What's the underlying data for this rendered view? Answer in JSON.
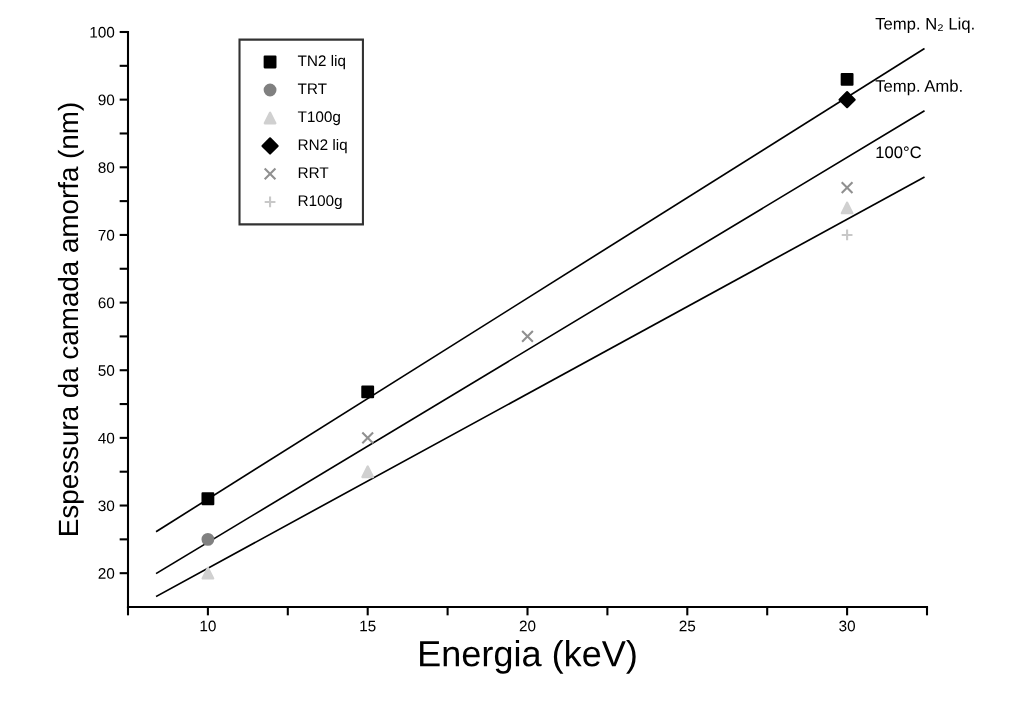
{
  "chart_data": {
    "type": "scatter",
    "xlabel": "Energia (keV)",
    "ylabel": "Espessura da camada amorfa (nm)",
    "xlim": [
      7.5,
      32.5
    ],
    "ylim": [
      15,
      100
    ],
    "xticks": [
      {
        "value": 7.5,
        "label": null
      },
      10,
      {
        "value": 12.5,
        "label": null
      },
      15,
      {
        "value": 17.5,
        "label": null
      },
      20,
      {
        "value": 22.5,
        "label": null
      },
      25,
      {
        "value": 27.5,
        "label": null
      },
      30,
      {
        "value": 32.5,
        "label": null
      }
    ],
    "yticks": [
      20,
      {
        "value": 25,
        "label": null
      },
      30,
      {
        "value": 35,
        "label": null
      },
      40,
      {
        "value": 45,
        "label": null
      },
      50,
      {
        "value": 55,
        "label": null
      },
      60,
      {
        "value": 65,
        "label": null
      },
      70,
      {
        "value": 75,
        "label": null
      },
      80,
      {
        "value": 85,
        "label": null
      },
      90,
      {
        "value": 95,
        "label": null
      },
      100
    ],
    "grid": false,
    "legend": "top left",
    "series": [
      {
        "name": "TN2 liq",
        "color": "#000000",
        "marker": "square",
        "x": [
          10,
          15,
          30
        ],
        "values": [
          31,
          46.8,
          93
        ]
      },
      {
        "name": "TRT",
        "color": "#808080",
        "marker": "circle",
        "x": [
          10
        ],
        "values": [
          25
        ]
      },
      {
        "name": "T100g",
        "color": "#d0d0d0",
        "marker": "triangle",
        "x": [
          10,
          15,
          30
        ],
        "values": [
          20,
          35,
          74
        ]
      },
      {
        "name": "RN2 liq",
        "color": "#000000",
        "marker": "diamond",
        "x": [
          30
        ],
        "values": [
          90
        ]
      },
      {
        "name": "RRT",
        "color": "#909090",
        "marker": "cross",
        "x": [
          15,
          20,
          30
        ],
        "values": [
          40,
          55,
          77
        ]
      },
      {
        "name": "R100g",
        "color": "#c8c8c8",
        "marker": "plus",
        "x": [
          30
        ],
        "values": [
          70
        ]
      },
      {
        "type": "line",
        "name": "Temp. N₂ Liq.",
        "color": "#000000",
        "marker": "none",
        "x": [
          8.4,
          32.4
        ],
        "values": [
          26.2,
          97.5
        ]
      },
      {
        "type": "line",
        "name": "Temp. Amb.",
        "color": "#000000",
        "marker": "none",
        "x": [
          8.4,
          32.4
        ],
        "values": [
          20.0,
          88.3
        ]
      },
      {
        "type": "line",
        "name": "100°C",
        "color": "#000000",
        "marker": "none",
        "x": [
          8.4,
          32.4
        ],
        "values": [
          16.6,
          78.5
        ]
      }
    ]
  }
}
